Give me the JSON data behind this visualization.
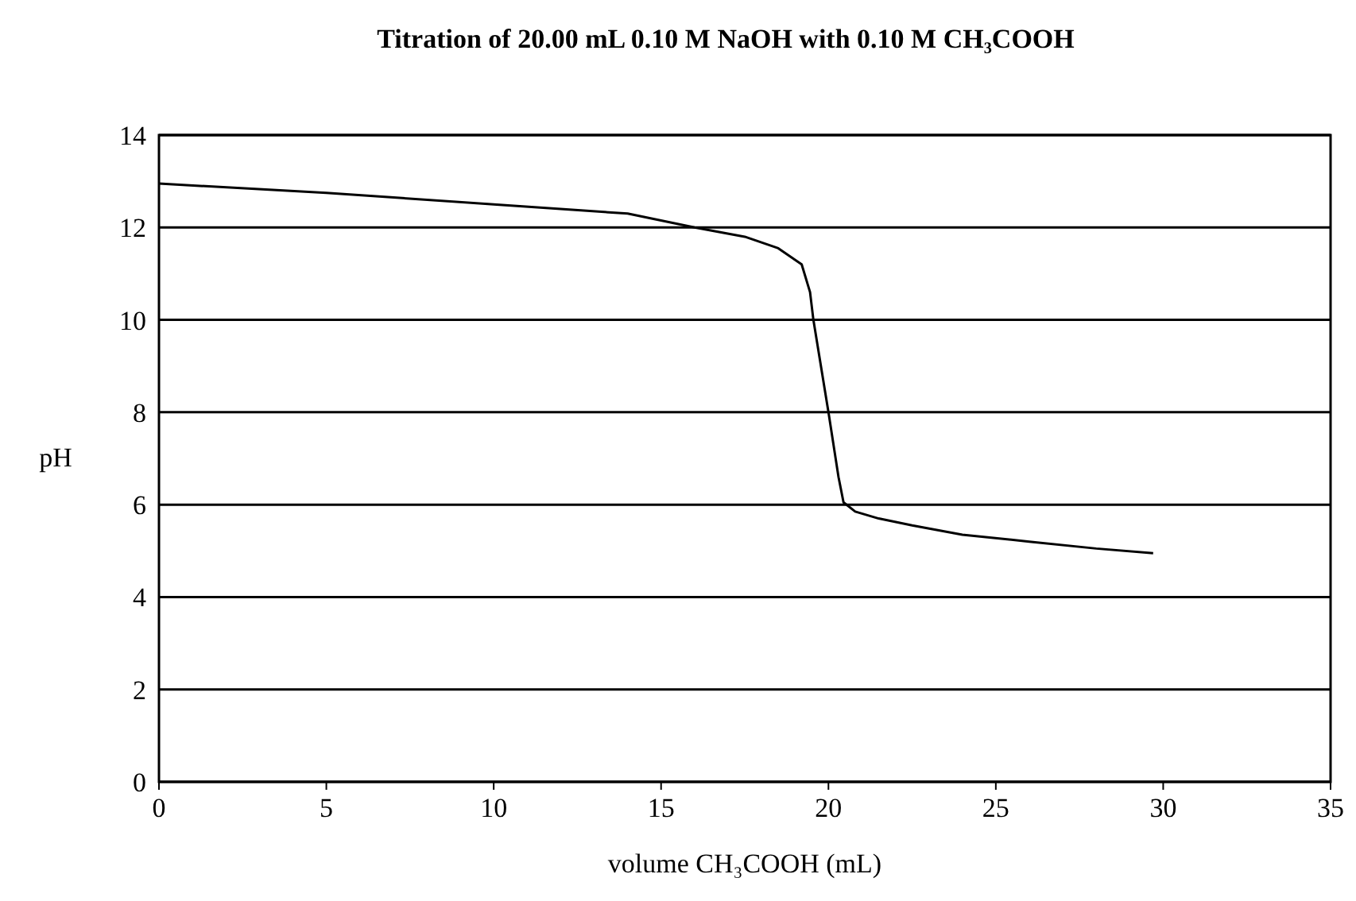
{
  "chart_data": {
    "type": "line",
    "title": "Titration of 20.00 mL 0.10 M NaOH with 0.10 M CH₃COOH",
    "xlabel": "volume CH₃COOH (mL)",
    "ylabel": "pH",
    "x": [
      0,
      5,
      10,
      14,
      16,
      17.5,
      18.5,
      19.2,
      19.45,
      19.55,
      20,
      20.3,
      20.45,
      20.8,
      21.5,
      22.5,
      24,
      26,
      28,
      29.7
    ],
    "series": [
      {
        "color": "#000000",
        "values": [
          12.95,
          12.75,
          12.5,
          12.3,
          12.0,
          11.8,
          11.55,
          11.2,
          10.6,
          10,
          8,
          6.6,
          6.05,
          5.85,
          5.7,
          5.55,
          5.35,
          5.2,
          5.05,
          4.95
        ]
      }
    ],
    "xlim": [
      0,
      35
    ],
    "ylim": [
      0,
      14
    ],
    "xticks": [
      0,
      5,
      10,
      15,
      20,
      25,
      30,
      35
    ],
    "yticks": [
      0,
      2,
      4,
      6,
      8,
      10,
      12,
      14
    ],
    "grid": "y",
    "marker": "none",
    "line_style": "solid"
  }
}
